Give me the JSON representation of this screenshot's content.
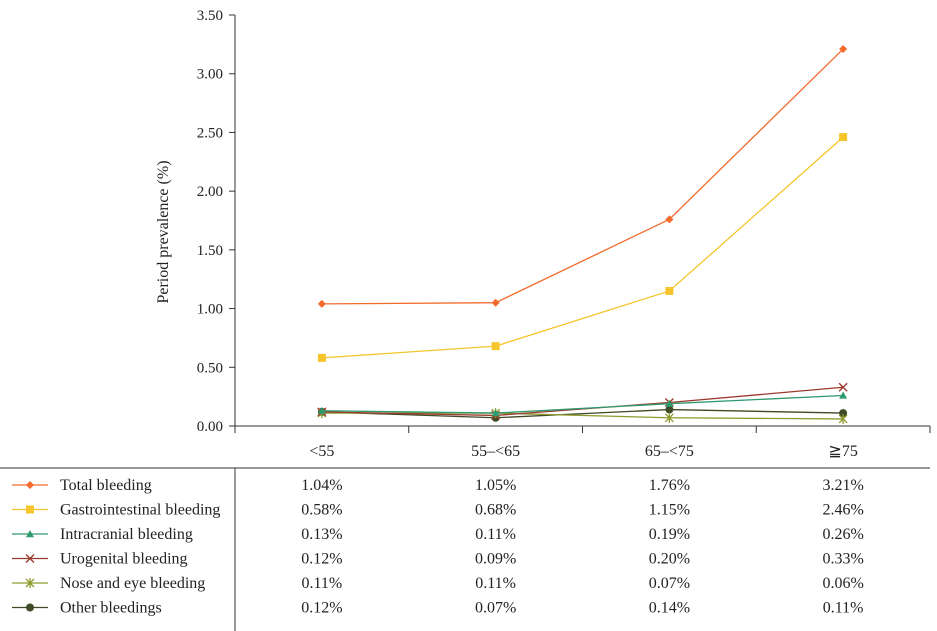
{
  "chart_data": {
    "type": "line",
    "title": "",
    "xlabel": "",
    "ylabel": "Period prevalence (%)",
    "ylim": [
      0,
      3.5
    ],
    "yticks": [
      "0.00",
      "0.50",
      "1.00",
      "1.50",
      "2.00",
      "2.50",
      "3.00",
      "3.50"
    ],
    "categories": [
      "<55",
      "55–<65",
      "65–<75",
      "≧75"
    ],
    "grid": false,
    "legend": "bottom-left, as data table",
    "series": [
      {
        "name": "Total bleeding",
        "marker": "diamond",
        "color": "#F26A2C",
        "values": [
          1.04,
          1.05,
          1.76,
          3.21
        ],
        "labels": [
          "1.04%",
          "1.05%",
          "1.76%",
          "3.21%"
        ]
      },
      {
        "name": "Gastrointestinal bleeding",
        "marker": "square",
        "color": "#F5C52B",
        "values": [
          0.58,
          0.68,
          1.15,
          2.46
        ],
        "labels": [
          "0.58%",
          "0.68%",
          "1.15%",
          "2.46%"
        ]
      },
      {
        "name": "Intracranial bleeding",
        "marker": "triangle",
        "color": "#2E9A6E",
        "values": [
          0.13,
          0.11,
          0.19,
          0.26
        ],
        "labels": [
          "0.13%",
          "0.11%",
          "0.19%",
          "0.26%"
        ]
      },
      {
        "name": "Urogenital bleeding",
        "marker": "x",
        "color": "#9C3A2E",
        "values": [
          0.12,
          0.09,
          0.2,
          0.33
        ],
        "labels": [
          "0.12%",
          "0.09%",
          "0.20%",
          "0.33%"
        ]
      },
      {
        "name": "Nose and eye bleeding",
        "marker": "star",
        "color": "#8E9A2E",
        "values": [
          0.11,
          0.11,
          0.07,
          0.06
        ],
        "labels": [
          "0.11%",
          "0.11%",
          "0.07%",
          "0.06%"
        ]
      },
      {
        "name": "Other bleedings",
        "marker": "circle",
        "color": "#3F4A26",
        "values": [
          0.12,
          0.07,
          0.14,
          0.11
        ],
        "labels": [
          "0.12%",
          "0.07%",
          "0.14%",
          "0.11%"
        ]
      }
    ]
  }
}
